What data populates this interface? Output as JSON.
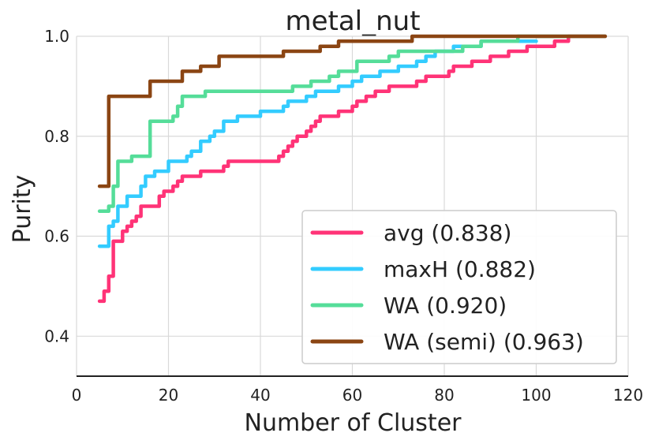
{
  "chart_data": {
    "type": "line",
    "title": "metal_nut",
    "xlabel": "Number of Cluster",
    "ylabel": "Purity",
    "xlim": [
      0,
      120
    ],
    "ylim": [
      0.32,
      1.0
    ],
    "xticks": [
      0,
      20,
      40,
      60,
      80,
      100,
      120
    ],
    "yticks": [
      0.4,
      0.6,
      0.8,
      1.0
    ],
    "ytick_labels": [
      "0.4",
      "0.6",
      "0.8",
      "1.0"
    ],
    "grid": true,
    "legend_position": "lower-right",
    "series": [
      {
        "name": "avg",
        "label": "avg (0.838)",
        "color": "#ff3377",
        "x": [
          5,
          6,
          7,
          8,
          9,
          10,
          11,
          12,
          13,
          14,
          15,
          17,
          18,
          19,
          20,
          21,
          22,
          23,
          26,
          27,
          29,
          30,
          32,
          33,
          35,
          36,
          43,
          44,
          45,
          46,
          47,
          48,
          49,
          50,
          51,
          52,
          53,
          54,
          55,
          57,
          58,
          60,
          61,
          62,
          63,
          64,
          65,
          66,
          67,
          68,
          70,
          72,
          74,
          76,
          80,
          81,
          82,
          84,
          86,
          88,
          90,
          92,
          94,
          96,
          98,
          100,
          102,
          104,
          106,
          107,
          110,
          115
        ],
        "values": [
          0.47,
          0.49,
          0.52,
          0.59,
          0.59,
          0.61,
          0.62,
          0.63,
          0.64,
          0.66,
          0.66,
          0.66,
          0.68,
          0.69,
          0.69,
          0.7,
          0.71,
          0.72,
          0.72,
          0.73,
          0.73,
          0.73,
          0.74,
          0.75,
          0.75,
          0.75,
          0.75,
          0.76,
          0.77,
          0.78,
          0.79,
          0.8,
          0.8,
          0.81,
          0.82,
          0.83,
          0.84,
          0.84,
          0.84,
          0.85,
          0.85,
          0.86,
          0.87,
          0.87,
          0.88,
          0.88,
          0.89,
          0.89,
          0.89,
          0.9,
          0.9,
          0.9,
          0.91,
          0.92,
          0.92,
          0.93,
          0.94,
          0.94,
          0.95,
          0.95,
          0.96,
          0.96,
          0.97,
          0.97,
          0.98,
          0.98,
          0.98,
          0.99,
          0.99,
          1.0,
          1.0,
          1.0
        ]
      },
      {
        "name": "maxH",
        "label": "maxH (0.882)",
        "color": "#33ccff",
        "x": [
          5,
          6,
          7,
          8,
          9,
          10,
          11,
          12,
          13,
          14,
          15,
          16,
          17,
          18,
          19,
          20,
          22,
          23,
          24,
          25,
          26,
          27,
          28,
          29,
          30,
          32,
          35,
          40,
          45,
          46,
          48,
          50,
          52,
          54,
          57,
          60,
          62,
          64,
          66,
          68,
          70,
          74,
          76,
          78,
          80,
          82,
          85,
          88,
          91,
          94,
          97,
          100
        ],
        "values": [
          0.58,
          0.58,
          0.62,
          0.63,
          0.66,
          0.66,
          0.68,
          0.68,
          0.68,
          0.7,
          0.72,
          0.72,
          0.73,
          0.73,
          0.73,
          0.75,
          0.75,
          0.75,
          0.76,
          0.77,
          0.77,
          0.79,
          0.79,
          0.8,
          0.81,
          0.83,
          0.84,
          0.85,
          0.86,
          0.87,
          0.87,
          0.88,
          0.89,
          0.89,
          0.9,
          0.91,
          0.92,
          0.92,
          0.93,
          0.93,
          0.94,
          0.95,
          0.96,
          0.97,
          0.97,
          0.98,
          0.98,
          0.99,
          0.99,
          0.99,
          0.99,
          0.99
        ]
      },
      {
        "name": "WA",
        "label": "WA (0.920)",
        "color": "#55dd99",
        "x": [
          5,
          6,
          7,
          8,
          9,
          10,
          11,
          12,
          13,
          14,
          15,
          16,
          17,
          18,
          19,
          20,
          21,
          22,
          23,
          24,
          25,
          26,
          27,
          28,
          30,
          35,
          40,
          45,
          47,
          49,
          51,
          53,
          55,
          57,
          59,
          61,
          64,
          66,
          68,
          70,
          75,
          80,
          84,
          88,
          92,
          96,
          100,
          105,
          110,
          115
        ],
        "values": [
          0.65,
          0.65,
          0.66,
          0.7,
          0.75,
          0.75,
          0.75,
          0.76,
          0.76,
          0.76,
          0.76,
          0.83,
          0.83,
          0.83,
          0.83,
          0.83,
          0.84,
          0.86,
          0.88,
          0.88,
          0.88,
          0.88,
          0.88,
          0.89,
          0.89,
          0.89,
          0.89,
          0.89,
          0.9,
          0.9,
          0.91,
          0.91,
          0.92,
          0.93,
          0.93,
          0.95,
          0.95,
          0.95,
          0.96,
          0.97,
          0.97,
          0.97,
          0.98,
          0.99,
          0.99,
          1.0,
          1.0,
          1.0,
          1.0,
          1.0
        ]
      },
      {
        "name": "WA (semi)",
        "label": "WA (semi) (0.963)",
        "color": "#8b4513",
        "x": [
          5,
          6,
          7,
          8,
          9,
          10,
          11,
          12,
          13,
          14,
          15,
          16,
          17,
          18,
          19,
          20,
          21,
          22,
          23,
          24,
          25,
          27,
          29,
          31,
          33,
          35,
          40,
          45,
          50,
          53,
          55,
          57,
          60,
          63,
          67,
          70,
          73,
          75,
          80,
          85,
          90,
          95,
          100,
          105,
          110,
          115
        ],
        "values": [
          0.7,
          0.7,
          0.88,
          0.88,
          0.88,
          0.88,
          0.88,
          0.88,
          0.88,
          0.88,
          0.88,
          0.91,
          0.91,
          0.91,
          0.91,
          0.91,
          0.91,
          0.91,
          0.93,
          0.93,
          0.93,
          0.94,
          0.94,
          0.96,
          0.96,
          0.96,
          0.96,
          0.97,
          0.97,
          0.98,
          0.98,
          0.99,
          0.99,
          0.99,
          0.99,
          0.99,
          1.0,
          1.0,
          1.0,
          1.0,
          1.0,
          1.0,
          1.0,
          1.0,
          1.0,
          1.0
        ]
      }
    ]
  }
}
